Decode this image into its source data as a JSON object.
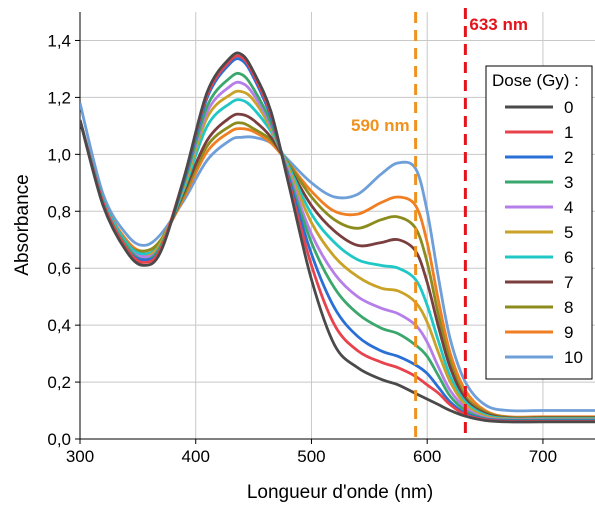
{
  "chart_data": {
    "type": "line",
    "xlabel": "Longueur d'onde (nm)",
    "ylabel": "Absorbance",
    "xlim": [
      300,
      745
    ],
    "ylim": [
      0.0,
      1.5
    ],
    "x_ticks": [
      300,
      400,
      500,
      600,
      700
    ],
    "y_ticks": [
      0.0,
      0.2,
      0.4,
      0.6,
      0.8,
      1.0,
      1.2,
      1.4
    ],
    "y_tick_labels": [
      "0,0",
      "0,2",
      "0,4",
      "0,6",
      "0,8",
      "1,0",
      "1,2",
      "1,4"
    ],
    "grid": true,
    "legend": {
      "title": "Dose (Gy) :",
      "placement": "right"
    },
    "annotations": [
      {
        "label": "590 nm",
        "x": 590,
        "color": "#f0921e",
        "style": "dashed"
      },
      {
        "label": "633 nm",
        "x": 633,
        "color": "#e3141b",
        "style": "dashed"
      }
    ],
    "x": [
      300,
      320,
      340,
      355,
      370,
      390,
      410,
      430,
      440,
      450,
      465,
      480,
      500,
      520,
      540,
      560,
      575,
      590,
      600,
      610,
      620,
      633,
      650,
      670,
      700,
      745
    ],
    "series": [
      {
        "name": "0",
        "color": "#4a4a4a",
        "values": [
          1.12,
          0.82,
          0.66,
          0.61,
          0.66,
          0.92,
          1.22,
          1.34,
          1.35,
          1.29,
          1.15,
          0.9,
          0.56,
          0.33,
          0.25,
          0.21,
          0.19,
          0.16,
          0.14,
          0.12,
          0.1,
          0.08,
          0.065,
          0.06,
          0.06,
          0.06
        ]
      },
      {
        "name": "1",
        "color": "#e8434d",
        "values": [
          1.12,
          0.83,
          0.67,
          0.62,
          0.67,
          0.92,
          1.21,
          1.33,
          1.34,
          1.28,
          1.14,
          0.91,
          0.61,
          0.4,
          0.31,
          0.27,
          0.25,
          0.22,
          0.19,
          0.16,
          0.12,
          0.085,
          0.068,
          0.062,
          0.062,
          0.062
        ]
      },
      {
        "name": "2",
        "color": "#2a6fd6",
        "values": [
          1.12,
          0.83,
          0.67,
          0.63,
          0.67,
          0.91,
          1.2,
          1.32,
          1.33,
          1.27,
          1.13,
          0.92,
          0.65,
          0.46,
          0.36,
          0.31,
          0.29,
          0.26,
          0.23,
          0.18,
          0.13,
          0.09,
          0.07,
          0.064,
          0.064,
          0.064
        ]
      },
      {
        "name": "3",
        "color": "#3aa76d",
        "values": [
          1.12,
          0.83,
          0.68,
          0.63,
          0.68,
          0.9,
          1.17,
          1.27,
          1.28,
          1.23,
          1.11,
          0.93,
          0.69,
          0.53,
          0.44,
          0.39,
          0.37,
          0.33,
          0.29,
          0.22,
          0.15,
          0.1,
          0.072,
          0.066,
          0.066,
          0.066
        ]
      },
      {
        "name": "4",
        "color": "#b57ee8",
        "values": [
          1.12,
          0.83,
          0.68,
          0.64,
          0.68,
          0.9,
          1.15,
          1.24,
          1.25,
          1.21,
          1.1,
          0.94,
          0.72,
          0.58,
          0.5,
          0.46,
          0.44,
          0.4,
          0.34,
          0.25,
          0.17,
          0.11,
          0.075,
          0.068,
          0.068,
          0.068
        ]
      },
      {
        "name": "5",
        "color": "#c9a227",
        "values": [
          1.12,
          0.83,
          0.68,
          0.64,
          0.69,
          0.89,
          1.13,
          1.21,
          1.22,
          1.19,
          1.09,
          0.95,
          0.76,
          0.64,
          0.57,
          0.53,
          0.52,
          0.48,
          0.41,
          0.3,
          0.2,
          0.12,
          0.08,
          0.07,
          0.07,
          0.07
        ]
      },
      {
        "name": "6",
        "color": "#1fc7c7",
        "values": [
          1.12,
          0.84,
          0.69,
          0.65,
          0.69,
          0.88,
          1.1,
          1.18,
          1.19,
          1.16,
          1.08,
          0.96,
          0.79,
          0.69,
          0.63,
          0.61,
          0.6,
          0.56,
          0.47,
          0.34,
          0.22,
          0.13,
          0.085,
          0.072,
          0.072,
          0.072
        ]
      },
      {
        "name": "7",
        "color": "#7a3e3e",
        "values": [
          1.12,
          0.84,
          0.69,
          0.65,
          0.69,
          0.87,
          1.05,
          1.13,
          1.14,
          1.12,
          1.06,
          0.96,
          0.82,
          0.73,
          0.68,
          0.69,
          0.7,
          0.66,
          0.55,
          0.39,
          0.25,
          0.14,
          0.09,
          0.074,
          0.074,
          0.074
        ]
      },
      {
        "name": "8",
        "color": "#8c8c1e",
        "values": [
          1.12,
          0.84,
          0.69,
          0.66,
          0.7,
          0.86,
          1.03,
          1.1,
          1.11,
          1.09,
          1.05,
          0.97,
          0.85,
          0.77,
          0.74,
          0.77,
          0.78,
          0.74,
          0.62,
          0.43,
          0.27,
          0.15,
          0.095,
          0.076,
          0.076,
          0.076
        ]
      },
      {
        "name": "9",
        "color": "#f07e22",
        "values": [
          1.12,
          0.84,
          0.7,
          0.66,
          0.7,
          0.85,
          1.01,
          1.08,
          1.09,
          1.08,
          1.04,
          0.97,
          0.87,
          0.8,
          0.79,
          0.83,
          0.85,
          0.82,
          0.69,
          0.48,
          0.3,
          0.17,
          0.1,
          0.078,
          0.078,
          0.078
        ]
      },
      {
        "name": "10",
        "color": "#6e9fd8",
        "values": [
          1.18,
          0.86,
          0.72,
          0.68,
          0.72,
          0.84,
          0.98,
          1.05,
          1.06,
          1.06,
          1.04,
          0.98,
          0.9,
          0.85,
          0.86,
          0.93,
          0.97,
          0.95,
          0.8,
          0.56,
          0.35,
          0.2,
          0.12,
          0.1,
          0.1,
          0.1
        ]
      }
    ]
  }
}
